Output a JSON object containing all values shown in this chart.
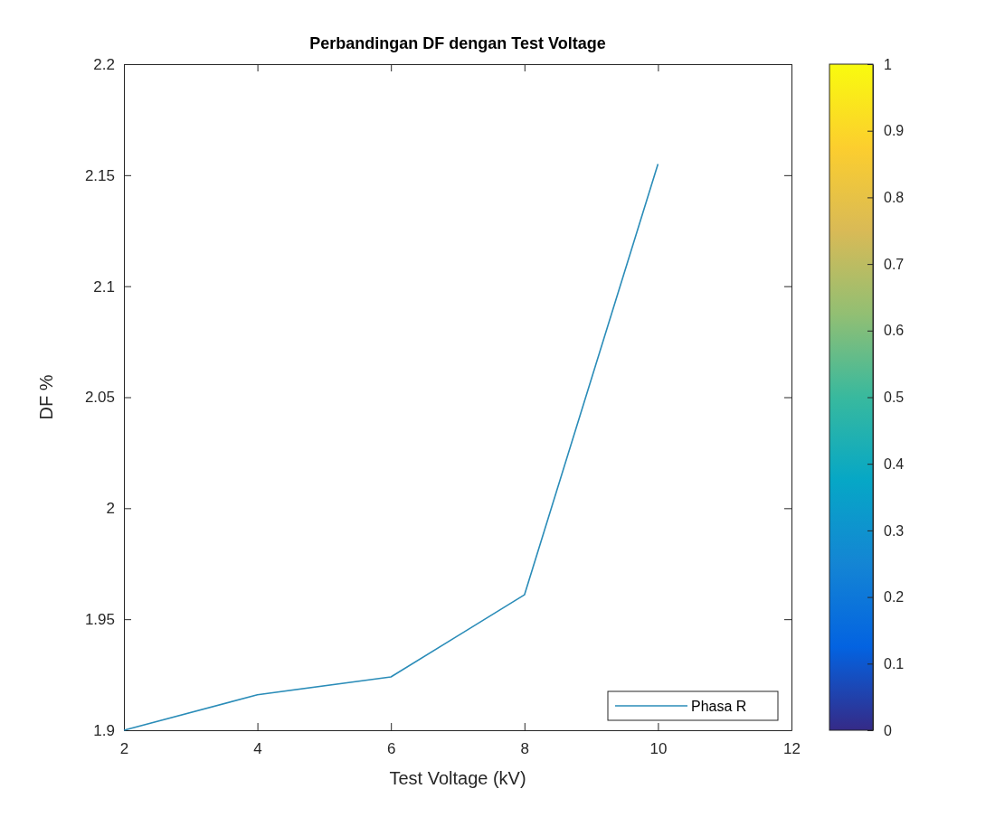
{
  "chart_data": {
    "type": "line",
    "title": "Perbandingan DF dengan Test Voltage",
    "xlabel": "Test Voltage (kV)",
    "ylabel": "DF %",
    "x": [
      2,
      4,
      6,
      8,
      10
    ],
    "series": [
      {
        "name": "Phasa R",
        "color": "#2a8cb8",
        "values": [
          1.9,
          1.916,
          1.924,
          1.961,
          2.155
        ]
      }
    ],
    "xlim": [
      2,
      12
    ],
    "xticks": [
      2,
      4,
      6,
      8,
      10,
      12
    ],
    "ylim": [
      1.9,
      2.2
    ],
    "yticks": [
      1.9,
      1.95,
      2,
      2.05,
      2.1,
      2.15,
      2.2
    ],
    "clim": [
      0,
      1
    ],
    "cticks": [
      0,
      0.1,
      0.2,
      0.3,
      0.4,
      0.5,
      0.6,
      0.7,
      0.8,
      0.9,
      1
    ],
    "grid": false,
    "legend": "bottom right",
    "marker": "none",
    "line_style": "solid"
  }
}
